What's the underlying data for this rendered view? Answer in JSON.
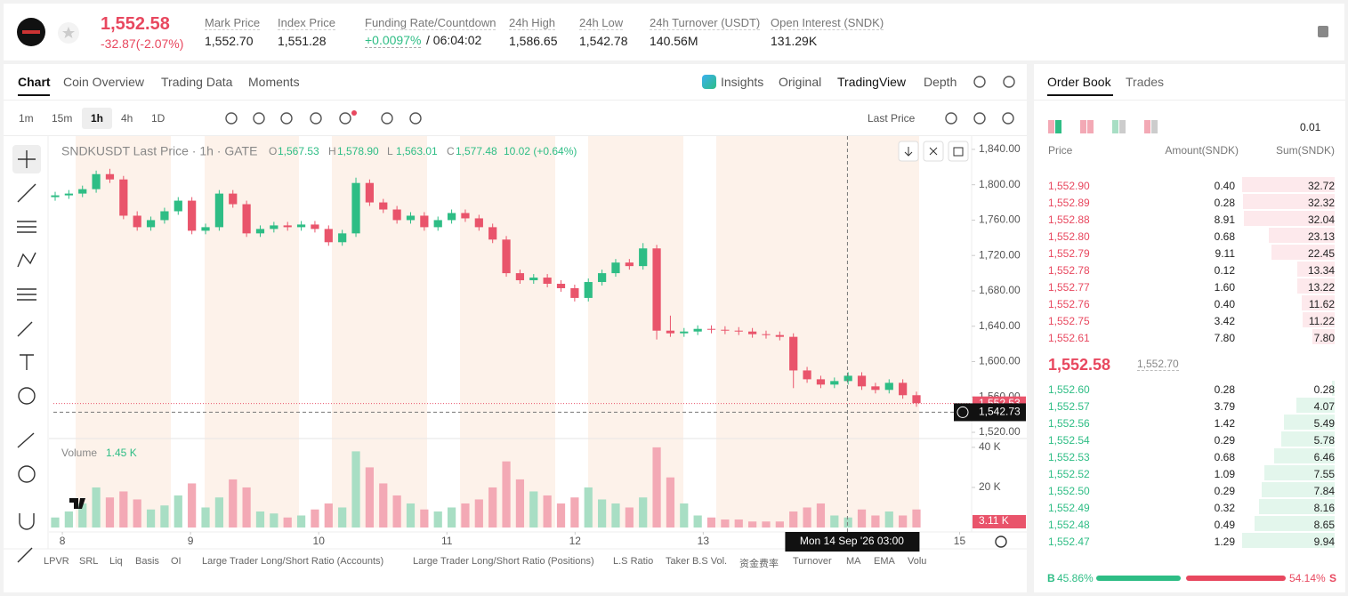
{
  "header": {
    "price": "1,552.58",
    "change": "-32.87(-2.07%)",
    "stats": [
      {
        "label": "Mark Price",
        "value": "1,552.70"
      },
      {
        "label": "Index Price",
        "value": "1,551.28"
      },
      {
        "label": "Funding Rate/Countdown",
        "value": "+0.0097%",
        "extra": "/ 06:04:02"
      },
      {
        "label": "24h High",
        "value": "1,586.65"
      },
      {
        "label": "24h Low",
        "value": "1,542.78"
      },
      {
        "label": "24h Turnover (USDT)",
        "value": "140.56M"
      },
      {
        "label": "Open Interest (SNDK)",
        "value": "131.29K"
      }
    ]
  },
  "chart_panel": {
    "tabs": [
      "Chart",
      "Coin Overview",
      "Trading Data",
      "Moments"
    ],
    "view_tabs": [
      "Insights",
      "Original",
      "TradingView",
      "Depth"
    ],
    "intervals": [
      "1m",
      "15m",
      "1h",
      "4h",
      "1D"
    ],
    "price_source": "Last Price",
    "indicators": [
      "LPVR",
      "SRL",
      "Liq",
      "Basis",
      "OI",
      "Large Trader Long/Short Ratio (Accounts)",
      "Large Trader Long/Short Ratio (Positions)",
      "L.S Ratio",
      "Taker B.S Vol.",
      "资金费率",
      "Turnover",
      "MA",
      "EMA",
      "Volu"
    ]
  },
  "chart_data": {
    "type": "candlestick",
    "legend": {
      "title": "SNDKUSDT Last Price · 1h · GATE",
      "items": [
        {
          "key": "O",
          "value": "1,567.53"
        },
        {
          "key": "H",
          "value": "1,578.90"
        },
        {
          "key": "L",
          "value": "1,563.01"
        },
        {
          "key": "C",
          "value": "1,577.48"
        }
      ],
      "change": "10.02 (+0.64%)"
    },
    "open": [
      1786,
      1788,
      1790,
      1795,
      1812,
      1806,
      1765,
      1752,
      1760,
      1770,
      1782,
      1748,
      1752,
      1790,
      1778,
      1745,
      1750,
      1754,
      1752,
      1755,
      1750,
      1735,
      1745,
      1802,
      1780,
      1772,
      1760,
      1765,
      1752,
      1760,
      1768,
      1762,
      1752,
      1738,
      1700,
      1692,
      1695,
      1688,
      1683,
      1672,
      1690,
      1700,
      1712,
      1708,
      1728,
      1635,
      1632,
      1634,
      1637,
      1636,
      1635,
      1634,
      1631,
      1630,
      1628,
      1590,
      1580,
      1574,
      1578,
      1584,
      1572,
      1568,
      1576,
      1562
    ],
    "high": [
      1792,
      1794,
      1799,
      1816,
      1818,
      1810,
      1770,
      1764,
      1774,
      1786,
      1786,
      1756,
      1794,
      1794,
      1782,
      1754,
      1758,
      1758,
      1759,
      1759,
      1754,
      1749,
      1808,
      1806,
      1784,
      1776,
      1769,
      1769,
      1764,
      1772,
      1772,
      1766,
      1756,
      1742,
      1704,
      1699,
      1699,
      1692,
      1687,
      1694,
      1704,
      1716,
      1716,
      1734,
      1732,
      1652,
      1638,
      1641,
      1641,
      1640,
      1639,
      1638,
      1635,
      1634,
      1632,
      1594,
      1584,
      1582,
      1588,
      1588,
      1576,
      1580,
      1580,
      1566
    ],
    "low": [
      1782,
      1784,
      1786,
      1791,
      1802,
      1761,
      1748,
      1748,
      1756,
      1766,
      1744,
      1744,
      1748,
      1774,
      1741,
      1741,
      1746,
      1748,
      1748,
      1746,
      1731,
      1731,
      1741,
      1776,
      1768,
      1756,
      1756,
      1748,
      1748,
      1756,
      1758,
      1748,
      1734,
      1696,
      1688,
      1688,
      1684,
      1679,
      1668,
      1668,
      1686,
      1696,
      1704,
      1704,
      1625,
      1628,
      1628,
      1630,
      1632,
      1631,
      1630,
      1627,
      1626,
      1624,
      1570,
      1576,
      1570,
      1570,
      1574,
      1568,
      1564,
      1564,
      1558,
      1549
    ],
    "close": [
      1788,
      1790,
      1795,
      1812,
      1806,
      1765,
      1752,
      1760,
      1770,
      1782,
      1748,
      1752,
      1790,
      1778,
      1745,
      1750,
      1754,
      1752,
      1755,
      1750,
      1735,
      1745,
      1802,
      1780,
      1772,
      1760,
      1765,
      1752,
      1760,
      1768,
      1762,
      1752,
      1738,
      1700,
      1692,
      1695,
      1688,
      1683,
      1672,
      1690,
      1700,
      1712,
      1708,
      1728,
      1635,
      1632,
      1634,
      1637,
      1636,
      1635,
      1634,
      1631,
      1630,
      1628,
      1590,
      1580,
      1574,
      1578,
      1584,
      1572,
      1568,
      1576,
      1562,
      1553
    ],
    "ylim": [
      1516,
      1855
    ],
    "yticks": [
      {
        "value": 1840,
        "label": "1,840.00"
      },
      {
        "value": 1800,
        "label": "1,800.00"
      },
      {
        "value": 1760,
        "label": "1,760.00"
      },
      {
        "value": 1720,
        "label": "1,720.00"
      },
      {
        "value": 1680,
        "label": "1,680.00"
      },
      {
        "value": 1640,
        "label": "1,640.00"
      },
      {
        "value": 1600,
        "label": "1,600.00"
      },
      {
        "value": 1560,
        "label": "1,560.00"
      },
      {
        "value": 1520,
        "label": "1,520.00"
      }
    ],
    "last_price": {
      "value": 1552.53,
      "label": "1,552.53"
    },
    "crosshair_price": {
      "value": 1542.73,
      "label": "1,542.73"
    },
    "xlim": [
      7.93,
      15.08
    ],
    "xticks": [
      8,
      9,
      10,
      11,
      12,
      13,
      15
    ],
    "crosshair_time": "Mon 14 Sep '26 03:00",
    "colors": {
      "up": "#2ebd85",
      "down": "#e9546b",
      "up_volume": "#a8dec4",
      "down_volume": "#f3a9b5"
    },
    "volume": {
      "label": "Volume",
      "current": "1.45 K",
      "values": [
        5000,
        8000,
        12000,
        20000,
        15000,
        18000,
        14000,
        9000,
        11000,
        16000,
        22000,
        10000,
        15000,
        24000,
        20000,
        8000,
        7000,
        5000,
        6000,
        9000,
        12000,
        10000,
        38000,
        30000,
        22000,
        16000,
        12000,
        9000,
        8000,
        10000,
        12000,
        14000,
        20000,
        33000,
        24000,
        18000,
        16000,
        12000,
        15000,
        20000,
        14000,
        12000,
        10000,
        15000,
        40000,
        25000,
        12000,
        6000,
        5000,
        4000,
        4000,
        3000,
        3000,
        3000,
        8000,
        10000,
        12000,
        6000,
        5000,
        9000,
        6000,
        8000,
        6000,
        9000
      ],
      "ylim": [
        0,
        43500
      ],
      "yticks": [
        {
          "value": 40000,
          "label": "40 K"
        },
        {
          "value": 20000,
          "label": "20 K"
        }
      ],
      "last": {
        "value": 3110,
        "label": "3.11 K"
      }
    }
  },
  "order_book": {
    "tabs": [
      "Order Book",
      "Trades"
    ],
    "precision": "0.01",
    "columns": [
      "Price",
      "Amount(SNDK)",
      "Sum(SNDK)"
    ],
    "asks": [
      [
        "1,552.90",
        "0.40",
        "32.72"
      ],
      [
        "1,552.89",
        "0.28",
        "32.32"
      ],
      [
        "1,552.88",
        "8.91",
        "32.04"
      ],
      [
        "1,552.80",
        "0.68",
        "23.13"
      ],
      [
        "1,552.79",
        "9.11",
        "22.45"
      ],
      [
        "1,552.78",
        "0.12",
        "13.34"
      ],
      [
        "1,552.77",
        "1.60",
        "13.22"
      ],
      [
        "1,552.76",
        "0.40",
        "11.62"
      ],
      [
        "1,552.75",
        "3.42",
        "11.22"
      ],
      [
        "1,552.61",
        "7.80",
        "7.80"
      ]
    ],
    "mid_price": "1,552.58",
    "mark_price": "1,552.70",
    "bids": [
      [
        "1,552.60",
        "0.28",
        "0.28"
      ],
      [
        "1,552.57",
        "3.79",
        "4.07"
      ],
      [
        "1,552.56",
        "1.42",
        "5.49"
      ],
      [
        "1,552.54",
        "0.29",
        "5.78"
      ],
      [
        "1,552.53",
        "0.68",
        "6.46"
      ],
      [
        "1,552.52",
        "1.09",
        "7.55"
      ],
      [
        "1,552.50",
        "0.29",
        "7.84"
      ],
      [
        "1,552.49",
        "0.32",
        "8.16"
      ],
      [
        "1,552.48",
        "0.49",
        "8.65"
      ],
      [
        "1,552.47",
        "1.29",
        "9.94"
      ]
    ],
    "buy_label": "B",
    "buy_ratio": "45.86%",
    "sell_ratio": "54.14%",
    "sell_label": "S"
  }
}
